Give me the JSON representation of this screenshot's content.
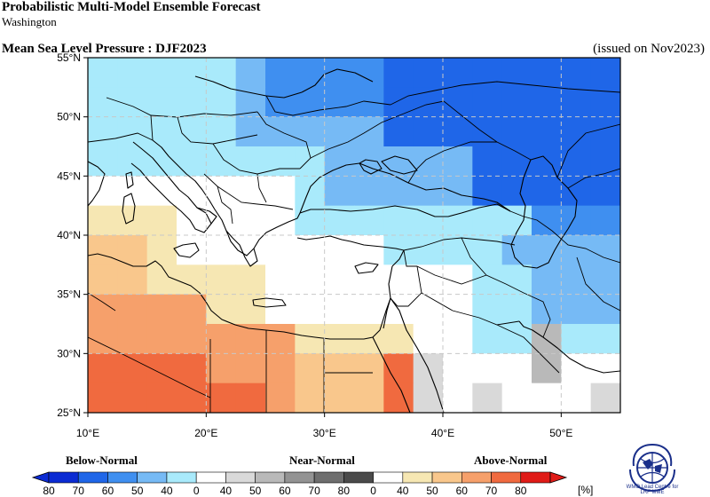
{
  "header": {
    "title": "Probabilistic Multi-Model Ensemble Forecast",
    "subtitle": "Washington",
    "map_title": "Mean Sea Level Pressure : DJF2023",
    "issued": "(issued on Nov2023)"
  },
  "map": {
    "lon_labels": [
      "10°E",
      "20°E",
      "30°E",
      "40°E",
      "50°E"
    ],
    "lat_labels": [
      "55°N",
      "50°N",
      "45°N",
      "40°N",
      "35°N",
      "30°N",
      "25°N"
    ],
    "lon_range": [
      10,
      55
    ],
    "lat_range": [
      25,
      55
    ]
  },
  "legend": {
    "below_label": "Below-Normal",
    "near_label": "Near-Normal",
    "above_label": "Above-Normal",
    "tick_labels": [
      "80",
      "70",
      "60",
      "50",
      "40",
      "0",
      "40",
      "50",
      "60",
      "70",
      "80",
      "0",
      "40",
      "50",
      "60",
      "70",
      "80"
    ],
    "unit": "[%]",
    "colors": [
      "#0b2bd3",
      "#1f66e8",
      "#3f8ff0",
      "#76baf5",
      "#a9eafb",
      "#ffffff",
      "#d9d9d9",
      "#b9b9b9",
      "#939393",
      "#6e6e6e",
      "#4a4a4a",
      "#ffffff",
      "#f6e7b3",
      "#f9c78c",
      "#f6a06b",
      "#f06a3f",
      "#e01b17"
    ]
  },
  "logo": {
    "line1": "WMO Lead Centre for",
    "line2": "LRF MME"
  }
}
